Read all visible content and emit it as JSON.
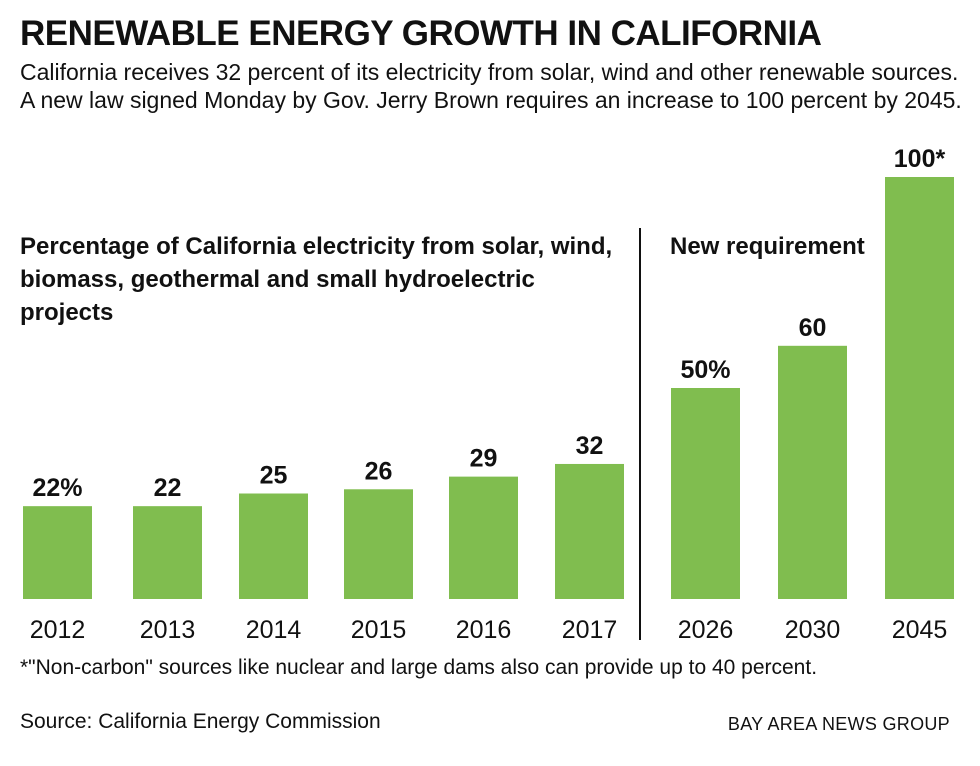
{
  "chart_data": {
    "type": "bar",
    "title": "RENEWABLE ENERGY GROWTH IN CALIFORNIA",
    "subtitle": "California receives 32 percent of its electricity from solar, wind and other renewable sources. A new law signed Monday by  Gov. Jerry Brown requires an increase to 100 percent by 2045.",
    "groups": [
      {
        "label": "Percentage of California electricity from solar, wind, biomass, geothermal and small hydroelectric projects",
        "categories": [
          "2012",
          "2013",
          "2014",
          "2015",
          "2016",
          "2017"
        ]
      },
      {
        "label": "New requirement",
        "categories": [
          "2026",
          "2030",
          "2045"
        ]
      }
    ],
    "categories": [
      "2012",
      "2013",
      "2014",
      "2015",
      "2016",
      "2017",
      "2026",
      "2030",
      "2045"
    ],
    "values": [
      22,
      22,
      25,
      26,
      29,
      32,
      50,
      60,
      100
    ],
    "data_labels": [
      "22%",
      "22",
      "25",
      "26",
      "29",
      "32",
      "50%",
      "60",
      "100*"
    ],
    "ylim": [
      0,
      100
    ],
    "xlabel": "",
    "ylabel": "",
    "grid": false,
    "bar_color": "#80bd4f"
  },
  "footnote": "*\"Non-carbon\" sources like nuclear and large dams also can provide up to 40 percent.",
  "source": "Source: California Energy Commission",
  "credit": "BAY AREA NEWS GROUP"
}
